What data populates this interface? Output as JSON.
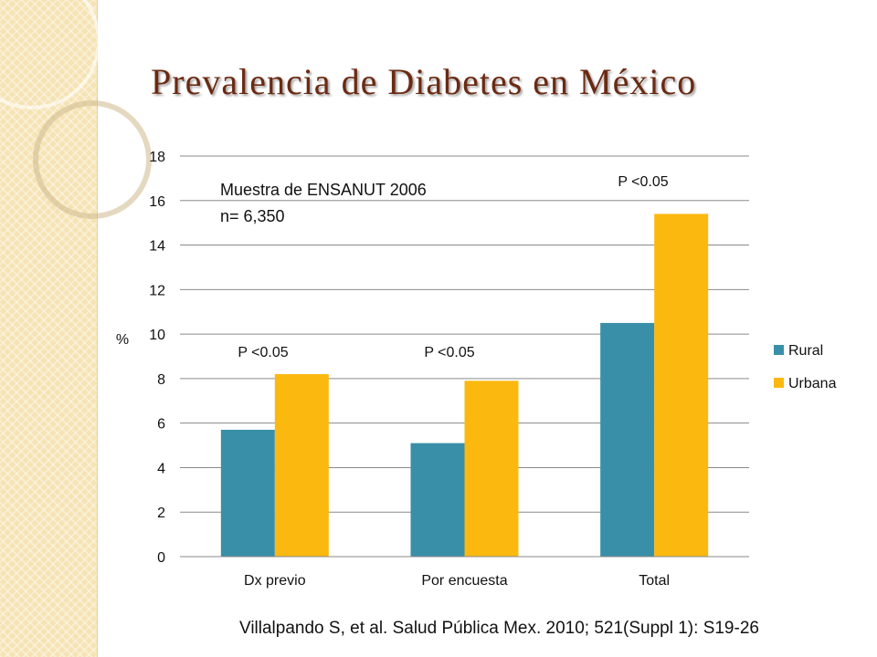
{
  "slide": {
    "title": "Prevalencia de Diabetes en México",
    "citation": "Villalpando S, et al. Salud Pública Mex. 2010; 521(Suppl 1): S19-26"
  },
  "chart_data": {
    "type": "bar",
    "title": "",
    "categories": [
      "Dx previo",
      "Por encuesta",
      "Total"
    ],
    "series": [
      {
        "name": "Rural",
        "values": [
          5.7,
          5.1,
          10.5
        ],
        "color": "#3a8fa8"
      },
      {
        "name": "Urbana",
        "values": [
          8.2,
          7.9,
          15.4
        ],
        "color": "#fbb80f"
      }
    ],
    "ylabel": "%",
    "xlabel": "",
    "ylim": [
      0,
      18
    ],
    "yticks": [
      "0",
      "2",
      "4",
      "6",
      "8",
      "10",
      "12",
      "14",
      "16",
      "18"
    ],
    "grid": true,
    "legend_position": "right",
    "annotations": {
      "sample_line1": "Muestra de ENSANUT 2006",
      "sample_line2": "n= 6,350",
      "pvalues": [
        "P <0.05",
        "P <0.05",
        "P <0.05"
      ]
    }
  }
}
